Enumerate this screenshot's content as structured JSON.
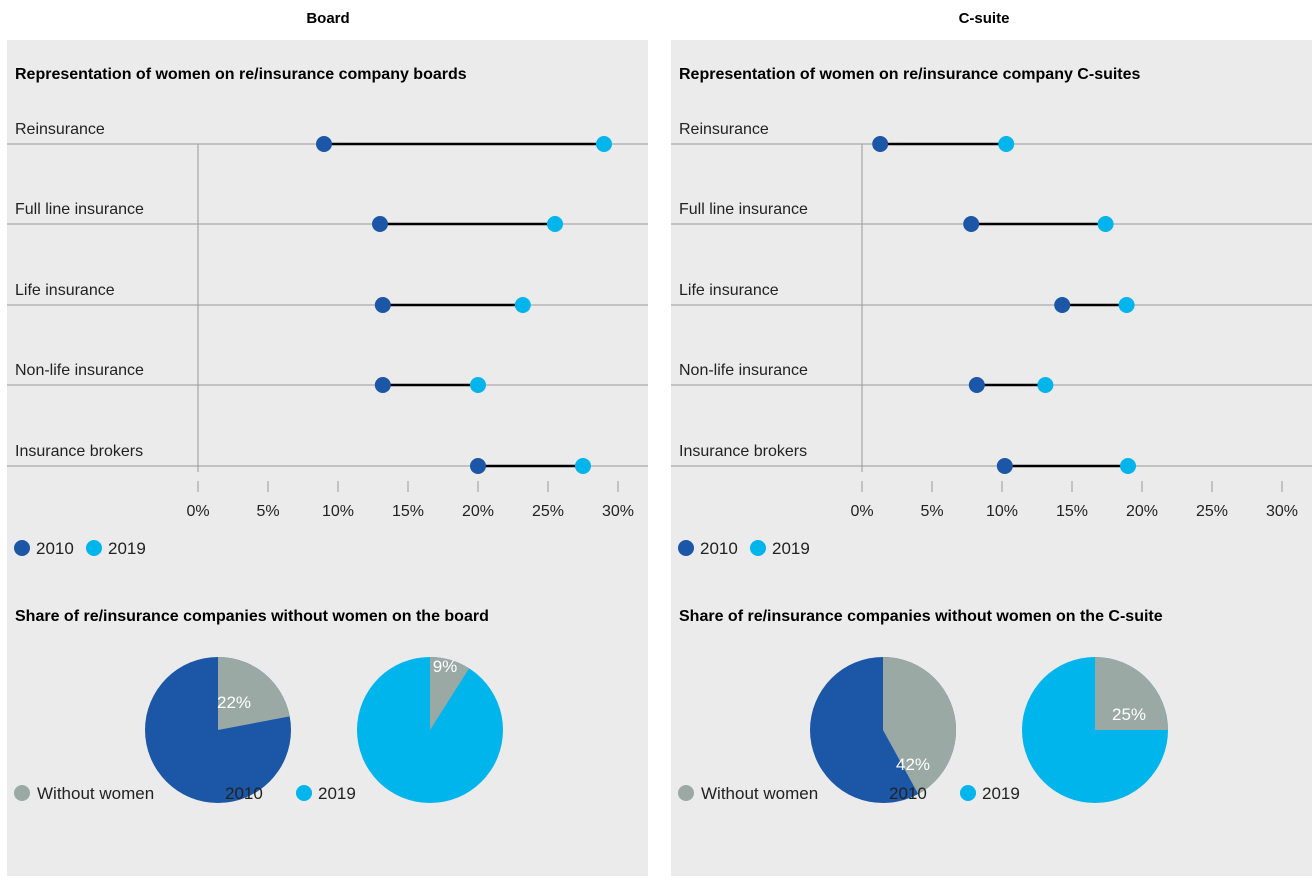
{
  "columns": [
    {
      "heading": "Board",
      "dumbbell_title": "Representation of women on re/insurance company boards",
      "pie_title": "Share of re/insurance companies without women on the board",
      "legend_top": [
        "2010",
        "2019"
      ],
      "legend_bottom": [
        "Without women",
        "2010",
        "2019"
      ]
    },
    {
      "heading": "C-suite",
      "dumbbell_title": "Representation of women on re/insurance company C-suites",
      "pie_title": "Share of re/insurance companies without women on the C-suite",
      "legend_top": [
        "2010",
        "2019"
      ],
      "legend_bottom": [
        "Without women",
        "2010",
        "2019"
      ]
    }
  ],
  "colors": {
    "y2010": "#1c56a6",
    "y2019": "#00b4ec",
    "without": "#9aa9a3",
    "panel": "#ebebeb",
    "line": "#000000",
    "grid": "#9a9a9a"
  },
  "chart_data": [
    {
      "type": "dumbbell",
      "title": "Representation of women on re/insurance company boards",
      "categories": [
        "Reinsurance",
        "Full line insurance",
        "Life insurance",
        "Non-life insurance",
        "Insurance brokers"
      ],
      "series": [
        {
          "name": "2010",
          "values": [
            9,
            13,
            13.2,
            13.2,
            20
          ]
        },
        {
          "name": "2019",
          "values": [
            29,
            25.5,
            23.2,
            20,
            27.5
          ]
        }
      ],
      "xlim": [
        0,
        30
      ],
      "xticks": [
        "0%",
        "5%",
        "10%",
        "15%",
        "20%",
        "25%",
        "30%"
      ]
    },
    {
      "type": "dumbbell",
      "title": "Representation of women on re/insurance company C-suites",
      "categories": [
        "Reinsurance",
        "Full line insurance",
        "Life insurance",
        "Non-life insurance",
        "Insurance brokers"
      ],
      "series": [
        {
          "name": "2010",
          "values": [
            1.3,
            7.8,
            14.3,
            8.2,
            10.2
          ]
        },
        {
          "name": "2019",
          "values": [
            10.3,
            17.4,
            18.9,
            13.1,
            19
          ]
        }
      ],
      "xlim": [
        0,
        30
      ],
      "xticks": [
        "0%",
        "5%",
        "10%",
        "15%",
        "20%",
        "25%",
        "30%"
      ]
    },
    {
      "type": "pie",
      "title": "Share of re/insurance companies without women on the board",
      "pies": [
        {
          "name": "2010",
          "without": 22,
          "label": "22%"
        },
        {
          "name": "2019",
          "without": 9,
          "label": "9%"
        }
      ]
    },
    {
      "type": "pie",
      "title": "Share of re/insurance companies without women on the C-suite",
      "pies": [
        {
          "name": "2010",
          "without": 42,
          "label": "42%"
        },
        {
          "name": "2019",
          "without": 25,
          "label": "25%"
        }
      ]
    }
  ]
}
